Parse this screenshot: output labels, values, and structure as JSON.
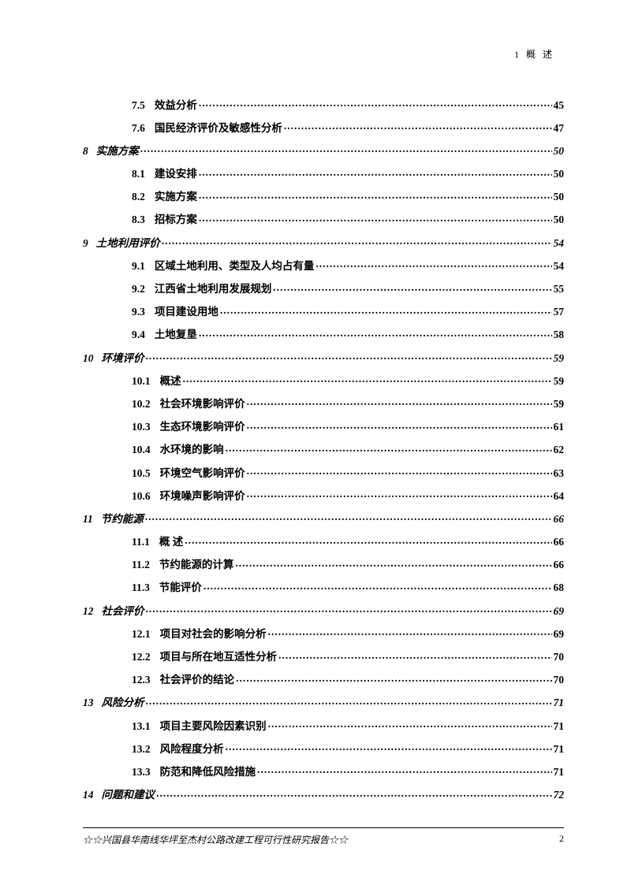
{
  "header_text": "1  概  述",
  "footer_text": "☆☆兴国县华南线华坪至杰村公路改建工程可行性研究报告☆☆",
  "footer_page": "2",
  "toc": [
    {
      "level": 2,
      "num": "7.5",
      "title": "效益分析",
      "page": "45"
    },
    {
      "level": 2,
      "num": "7.6",
      "title": "国民经济评价及敏感性分析",
      "page": "47"
    },
    {
      "level": 1,
      "num": "8",
      "title": "实施方案",
      "page": "50"
    },
    {
      "level": 2,
      "num": "8.1",
      "title": "建设安排",
      "page": "50"
    },
    {
      "level": 2,
      "num": "8.2",
      "title": "实施方案",
      "page": "50"
    },
    {
      "level": 2,
      "num": "8.3",
      "title": "招标方案",
      "page": "50"
    },
    {
      "level": 1,
      "num": "9",
      "title": "土地利用评价",
      "page": "54"
    },
    {
      "level": 2,
      "num": "9.1",
      "title": "区域土地利用、类型及人均占有量",
      "page": "54"
    },
    {
      "level": 2,
      "num": "9.2",
      "title": "江西省土地利用发展规划",
      "page": "55"
    },
    {
      "level": 2,
      "num": "9.3",
      "title": "项目建设用地",
      "page": "57"
    },
    {
      "level": 2,
      "num": "9.4",
      "title": "土地复垦",
      "page": "58"
    },
    {
      "level": 1,
      "num": "10",
      "title": "环境评价",
      "page": "59"
    },
    {
      "level": 2,
      "num": "10.1",
      "title": "概述",
      "page": "59"
    },
    {
      "level": 2,
      "num": "10.2",
      "title": "社会环境影响评价",
      "page": "59"
    },
    {
      "level": 2,
      "num": "10.3",
      "title": "生态环境影响评价",
      "page": "61"
    },
    {
      "level": 2,
      "num": "10.4",
      "title": "水环境的影响",
      "page": "62"
    },
    {
      "level": 2,
      "num": "10.5",
      "title": "环境空气影响评价",
      "page": "63"
    },
    {
      "level": 2,
      "num": "10.6",
      "title": "环境噪声影响评价",
      "page": "64"
    },
    {
      "level": 1,
      "num": "11",
      "title": "节约能源",
      "page": "66"
    },
    {
      "level": 2,
      "num": "11.1",
      "title": "概  述",
      "page": "66"
    },
    {
      "level": 2,
      "num": "11.2",
      "title": "节约能源的计算",
      "page": "66"
    },
    {
      "level": 2,
      "num": "11.3",
      "title": "节能评价",
      "page": "68"
    },
    {
      "level": 1,
      "num": "12",
      "title": "社会评价",
      "page": "69"
    },
    {
      "level": 2,
      "num": "12.1",
      "title": "项目对社会的影响分析",
      "page": "69"
    },
    {
      "level": 2,
      "num": "12.2",
      "title": "项目与所在地互适性分析",
      "page": "70"
    },
    {
      "level": 2,
      "num": "12.3",
      "title": "社会评价的结论",
      "page": "70"
    },
    {
      "level": 1,
      "num": "13",
      "title": "风险分析",
      "page": "71"
    },
    {
      "level": 2,
      "num": "13.1",
      "title": "项目主要风险因素识别",
      "page": "71"
    },
    {
      "level": 2,
      "num": "13.2",
      "title": "风险程度分析",
      "page": "71"
    },
    {
      "level": 2,
      "num": "13.3",
      "title": "防范和降低风险措施",
      "page": "71"
    },
    {
      "level": 1,
      "num": "14",
      "title": "问题和建议",
      "page": "72"
    }
  ]
}
